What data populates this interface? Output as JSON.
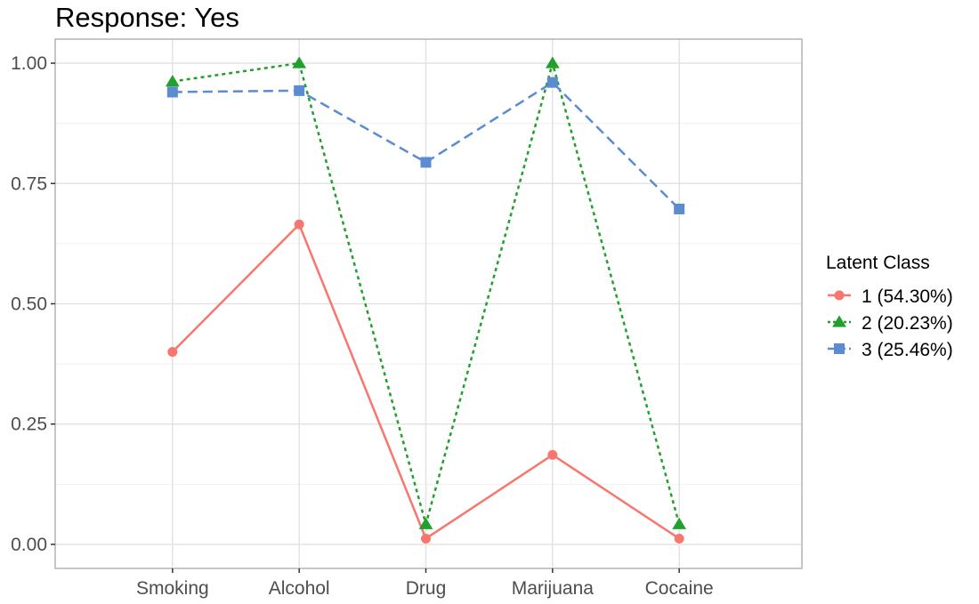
{
  "chart_data": {
    "type": "line",
    "title": "Response: Yes",
    "xlabel": "",
    "ylabel": "",
    "categories": [
      "Smoking",
      "Alcohol",
      "Drug",
      "Marijuana",
      "Cocaine"
    ],
    "ylim": [
      -0.05,
      1.05
    ],
    "yticks": [
      "0.00",
      "0.25",
      "0.50",
      "0.75",
      "1.00"
    ],
    "grid": true,
    "legend": {
      "title": "Latent Class",
      "position": "right"
    },
    "series": [
      {
        "name": "1 (54.30%)",
        "values": [
          0.4,
          0.665,
          0.012,
          0.186,
          0.012
        ],
        "color": "#F8766D",
        "marker": "circle",
        "dash": "solid"
      },
      {
        "name": "2 (20.23%)",
        "values": [
          0.962,
          1.0,
          0.042,
          1.0,
          0.042
        ],
        "color": "#22A02C",
        "marker": "triangle",
        "dash": "dotted"
      },
      {
        "name": "3 (25.46%)",
        "values": [
          0.94,
          0.943,
          0.794,
          0.96,
          0.697
        ],
        "color": "#5B8BD0",
        "marker": "square",
        "dash": "dashed"
      }
    ]
  }
}
